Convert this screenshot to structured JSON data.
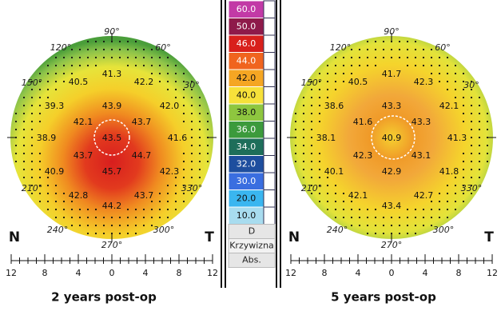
{
  "scale": {
    "items": [
      {
        "label": "60.0",
        "color": "#c23aa6"
      },
      {
        "label": "50.0",
        "color": "#8e1a4a"
      },
      {
        "label": "46.0",
        "color": "#d8201c"
      },
      {
        "label": "44.0",
        "color": "#f0641e"
      },
      {
        "label": "42.0",
        "color": "#f5a623"
      },
      {
        "label": "40.0",
        "color": "#f7e13a"
      },
      {
        "label": "38.0",
        "color": "#8ec63f"
      },
      {
        "label": "36.0",
        "color": "#3c9a3c"
      },
      {
        "label": "34.0",
        "color": "#1e6e5a"
      },
      {
        "label": "32.0",
        "color": "#1e4e9e"
      },
      {
        "label": "30.0",
        "color": "#3a6ee0"
      },
      {
        "label": "20.0",
        "color": "#3ab6f0"
      },
      {
        "label": "10.0",
        "color": "#a8dcef"
      }
    ],
    "unit": "D",
    "quantity": "Krzywizna",
    "mode": "Abs."
  },
  "maps": [
    {
      "title": "2 years post-op",
      "nasal": "N",
      "temporal": "T",
      "angles": [
        "90°",
        "60°",
        "30°",
        "120°",
        "150°",
        "210°",
        "240°",
        "270°",
        "300°",
        "330°"
      ],
      "readings": [
        "41.3",
        "40.5",
        "42.2",
        "39.3",
        "43.9",
        "42.0",
        "42.1",
        "43.7",
        "38.9",
        "43.5",
        "41.6",
        "43.7",
        "44.7",
        "40.9",
        "45.7",
        "42.3",
        "42.8",
        "43.7",
        "44.2"
      ],
      "ruler": [
        "12",
        "8",
        "4",
        "0",
        "4",
        "8",
        "12"
      ]
    },
    {
      "title": "5 years post-op",
      "nasal": "N",
      "temporal": "T",
      "angles": [
        "90°",
        "60°",
        "30°",
        "120°",
        "150°",
        "210°",
        "240°",
        "270°",
        "300°",
        "330°"
      ],
      "readings": [
        "41.7",
        "40.5",
        "42.3",
        "38.6",
        "43.3",
        "42.1",
        "41.6",
        "43.3",
        "38.1",
        "40.9",
        "41.3",
        "42.3",
        "43.1",
        "40.1",
        "42.9",
        "41.8",
        "42.1",
        "42.7",
        "43.4"
      ],
      "ruler": [
        "12",
        "8",
        "4",
        "0",
        "4",
        "8",
        "12"
      ]
    }
  ]
}
